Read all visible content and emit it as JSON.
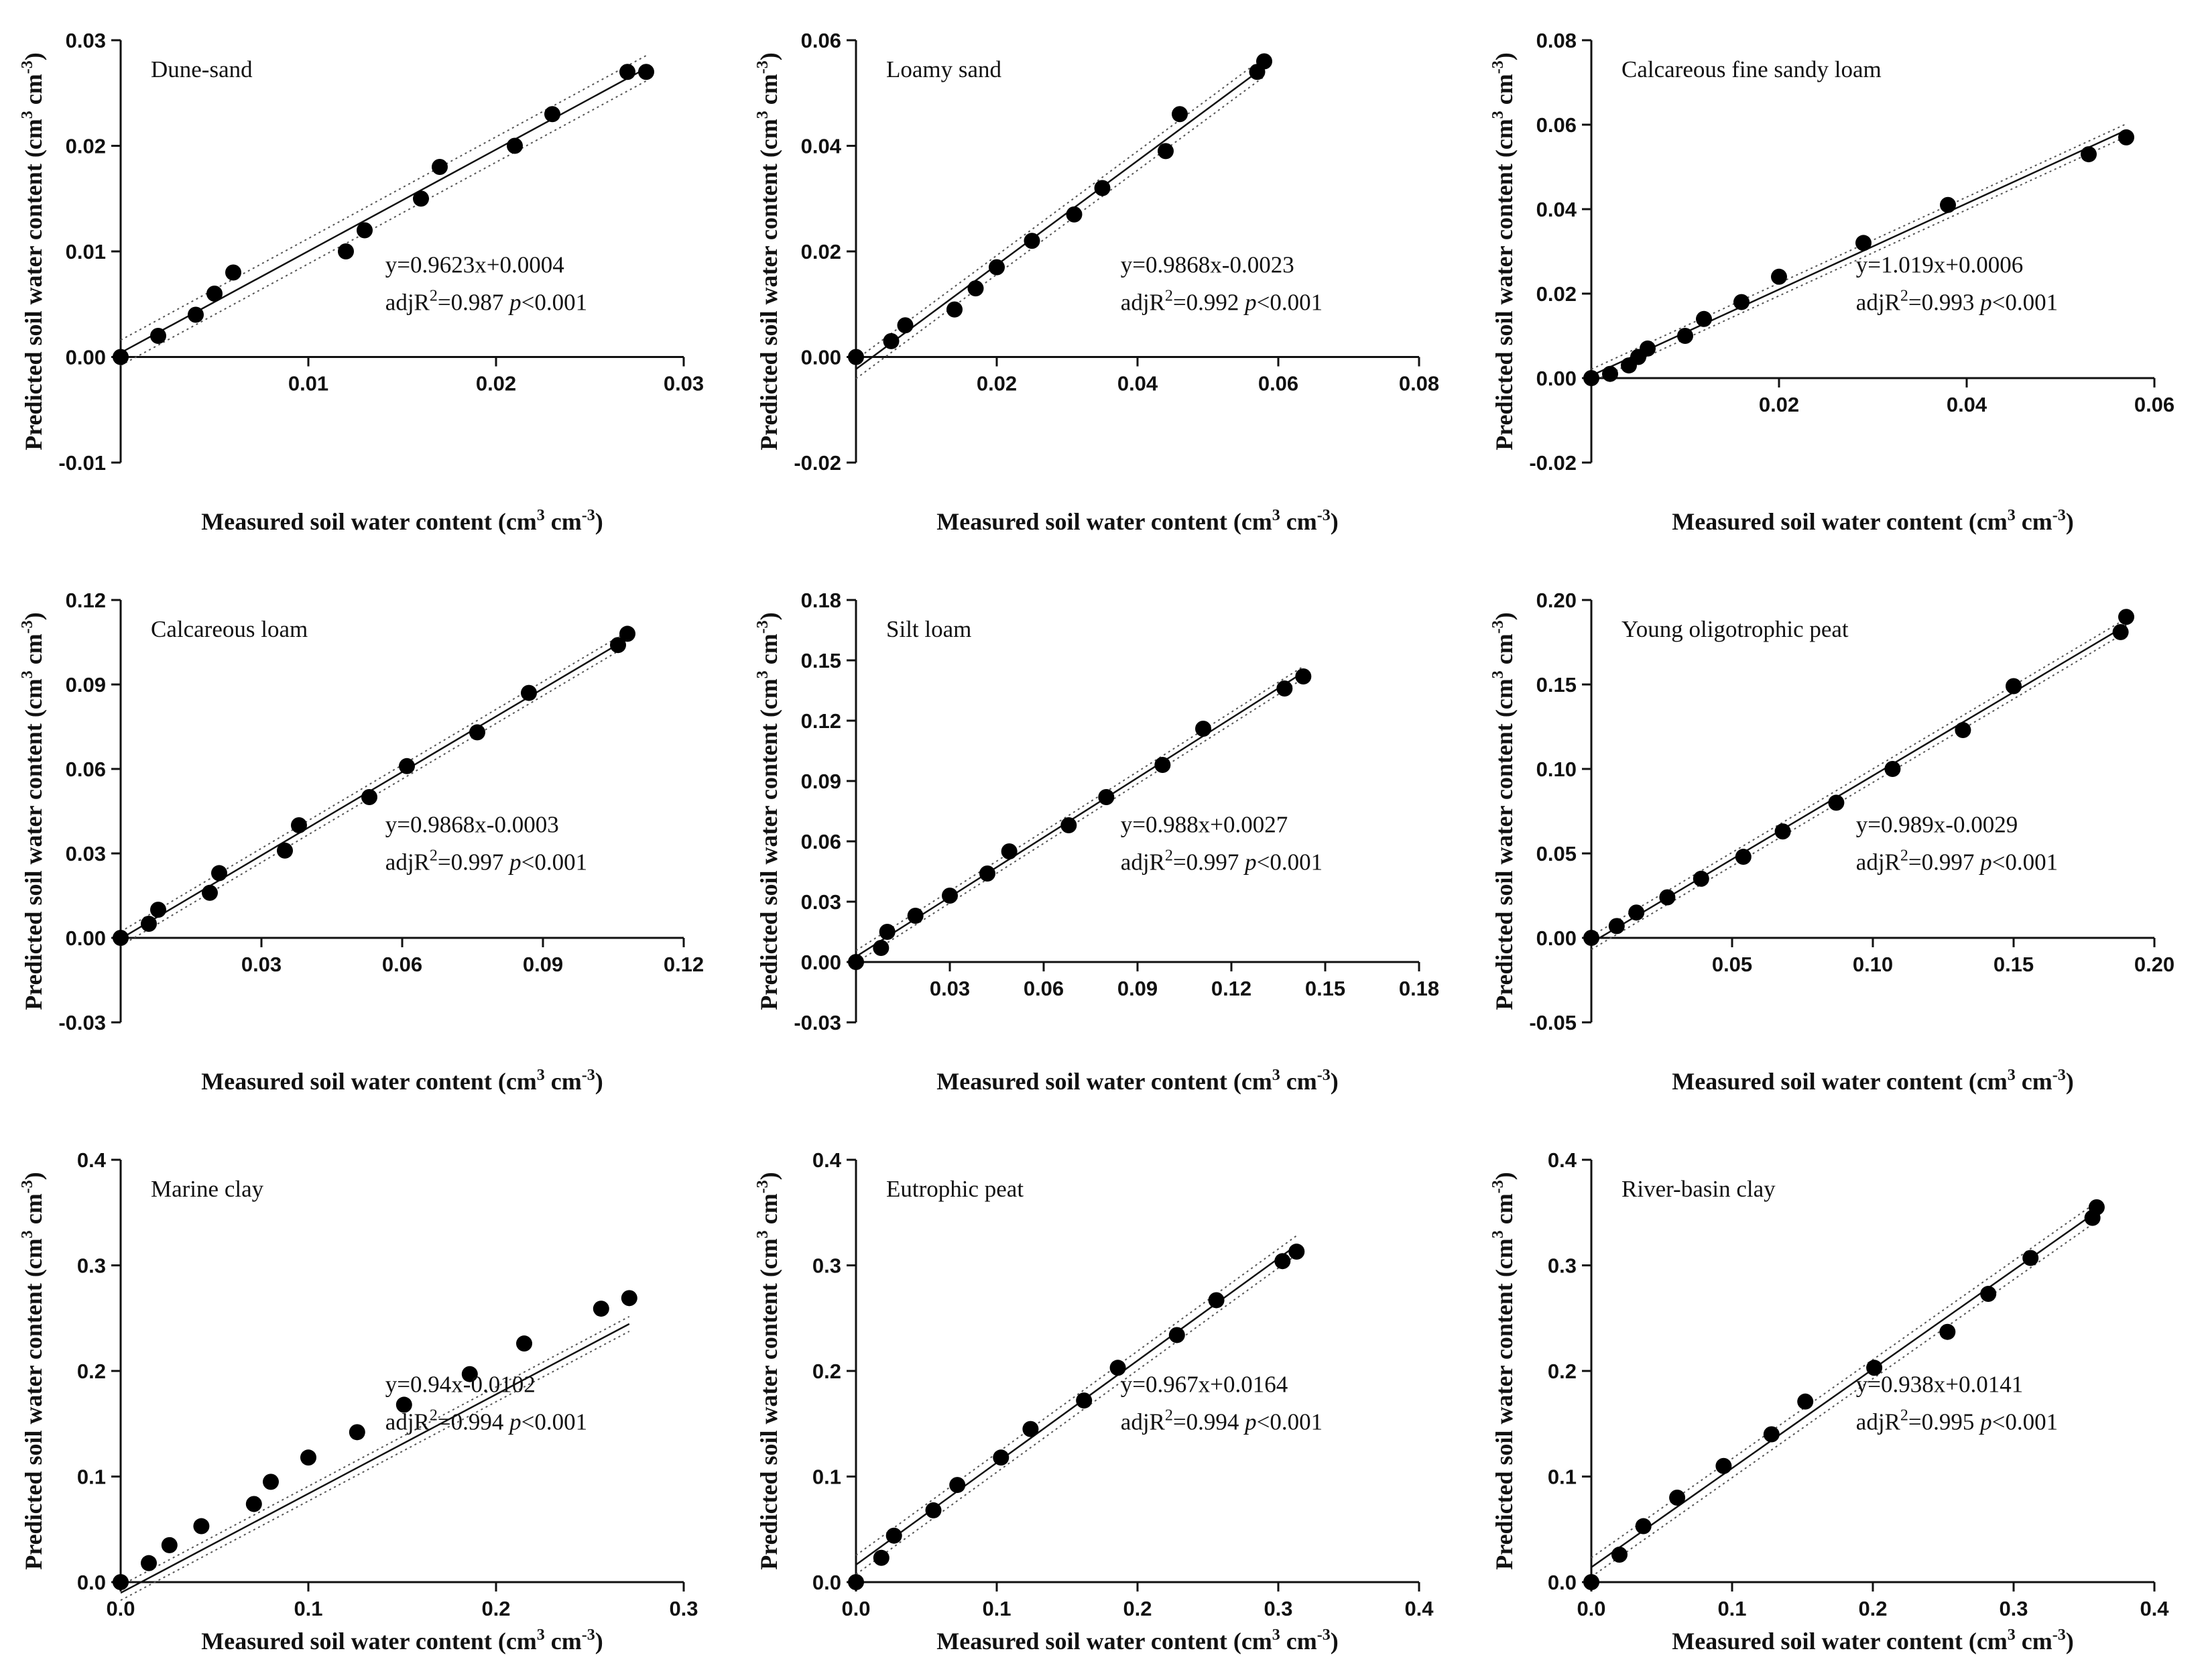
{
  "chart_data": [
    {
      "type": "scatter",
      "title": "Dune-sand",
      "xlabel": "Measured soil water content",
      "ylabel": "Predicted soil water content",
      "unit_label": "(cm3 cm-3)",
      "xlim": [
        0,
        0.03
      ],
      "ylim": [
        -0.01,
        0.03
      ],
      "xticks": [
        0.01,
        0.02,
        0.03
      ],
      "yticks": [
        -0.01,
        0.0,
        0.01,
        0.02,
        0.03
      ],
      "xdec": 2,
      "ydec": 2,
      "equation": "y=0.9623x+0.0004",
      "adj_r2": "0.987",
      "p_text": "p<0.001",
      "slope": 0.9623,
      "intercept": 0.0004,
      "ci": 0.0012,
      "x": [
        0,
        0.002,
        0.004,
        0.005,
        0.006,
        0.012,
        0.013,
        0.016,
        0.017,
        0.021,
        0.023,
        0.027,
        0.028
      ],
      "y": [
        0,
        0.002,
        0.004,
        0.006,
        0.008,
        0.01,
        0.012,
        0.015,
        0.018,
        0.02,
        0.023,
        0.027,
        0.027
      ]
    },
    {
      "type": "scatter",
      "title": "Loamy sand",
      "xlabel": "Measured soil water content",
      "ylabel": "Predicted soil water content",
      "unit_label": "(cm3 cm-3)",
      "xlim": [
        0,
        0.08
      ],
      "ylim": [
        -0.02,
        0.06
      ],
      "xticks": [
        0.02,
        0.04,
        0.06,
        0.08
      ],
      "yticks": [
        -0.02,
        0.0,
        0.02,
        0.04,
        0.06
      ],
      "xdec": 2,
      "ydec": 2,
      "equation": "y=0.9868x-0.0023",
      "adj_r2": "0.992",
      "p_text": "p<0.001",
      "slope": 0.9868,
      "intercept": -0.0023,
      "ci": 0.0018,
      "x": [
        0,
        0.005,
        0.007,
        0.014,
        0.017,
        0.02,
        0.025,
        0.031,
        0.035,
        0.044,
        0.046,
        0.057,
        0.058
      ],
      "y": [
        0,
        0.003,
        0.006,
        0.009,
        0.013,
        0.017,
        0.022,
        0.027,
        0.032,
        0.039,
        0.046,
        0.054,
        0.056
      ]
    },
    {
      "type": "scatter",
      "title": "Calcareous fine sandy loam",
      "xlabel": "Measured soil water content",
      "ylabel": "Predicted soil water content",
      "unit_label": "(cm3 cm-3)",
      "xlim": [
        0,
        0.06
      ],
      "ylim": [
        -0.02,
        0.08
      ],
      "xticks": [
        0.02,
        0.04,
        0.06
      ],
      "yticks": [
        -0.02,
        0.0,
        0.02,
        0.04,
        0.06,
        0.08
      ],
      "xdec": 2,
      "ydec": 2,
      "equation": "y=1.019x+0.0006",
      "adj_r2": "0.993",
      "p_text": "p<0.001",
      "slope": 1.019,
      "intercept": 0.0006,
      "ci": 0.0015,
      "x": [
        0,
        0.002,
        0.004,
        0.005,
        0.006,
        0.01,
        0.012,
        0.016,
        0.02,
        0.029,
        0.038,
        0.053,
        0.057
      ],
      "y": [
        0,
        0.001,
        0.003,
        0.005,
        0.007,
        0.01,
        0.014,
        0.018,
        0.024,
        0.032,
        0.041,
        0.053,
        0.057
      ]
    },
    {
      "type": "scatter",
      "title": "Calcareous loam",
      "xlabel": "Measured soil water content",
      "ylabel": "Predicted soil water content",
      "unit_label": "(cm3 cm-3)",
      "xlim": [
        0,
        0.12
      ],
      "ylim": [
        -0.03,
        0.12
      ],
      "xticks": [
        0.03,
        0.06,
        0.09,
        0.12
      ],
      "yticks": [
        -0.03,
        0.0,
        0.03,
        0.06,
        0.09,
        0.12
      ],
      "xdec": 2,
      "ydec": 2,
      "equation": "y=0.9868x-0.0003",
      "adj_r2": "0.997",
      "p_text": "p<0.001",
      "slope": 0.9868,
      "intercept": -0.0003,
      "ci": 0.0025,
      "x": [
        0,
        0.006,
        0.008,
        0.019,
        0.021,
        0.035,
        0.038,
        0.053,
        0.061,
        0.076,
        0.087,
        0.106,
        0.108
      ],
      "y": [
        0,
        0.005,
        0.01,
        0.016,
        0.023,
        0.031,
        0.04,
        0.05,
        0.061,
        0.073,
        0.087,
        0.104,
        0.108
      ]
    },
    {
      "type": "scatter",
      "title": "Silt loam",
      "xlabel": "Measured soil water content",
      "ylabel": "Predicted soil water content",
      "unit_label": "(cm3 cm-3)",
      "xlim": [
        0,
        0.18
      ],
      "ylim": [
        -0.03,
        0.18
      ],
      "xticks": [
        0.03,
        0.06,
        0.09,
        0.12,
        0.15,
        0.18
      ],
      "yticks": [
        -0.03,
        0.0,
        0.03,
        0.06,
        0.09,
        0.12,
        0.15,
        0.18
      ],
      "xdec": 2,
      "ydec": 2,
      "equation": "y=0.988x+0.0027",
      "adj_r2": "0.997",
      "p_text": "p<0.001",
      "slope": 0.988,
      "intercept": 0.0027,
      "ci": 0.003,
      "x": [
        0,
        0.008,
        0.01,
        0.019,
        0.03,
        0.042,
        0.049,
        0.068,
        0.08,
        0.098,
        0.111,
        0.137,
        0.143
      ],
      "y": [
        0,
        0.007,
        0.015,
        0.023,
        0.033,
        0.044,
        0.055,
        0.068,
        0.082,
        0.098,
        0.116,
        0.136,
        0.142
      ]
    },
    {
      "type": "scatter",
      "title": "Young oligotrophic peat",
      "xlabel": "Measured soil water content",
      "ylabel": "Predicted soil water content",
      "unit_label": "(cm3 cm-3)",
      "xlim": [
        0,
        0.2
      ],
      "ylim": [
        -0.05,
        0.2
      ],
      "xticks": [
        0.05,
        0.1,
        0.15,
        0.2
      ],
      "yticks": [
        -0.05,
        0.0,
        0.05,
        0.1,
        0.15,
        0.2
      ],
      "xdec": 2,
      "ydec": 2,
      "equation": "y=0.989x-0.0029",
      "adj_r2": "0.997",
      "p_text": "p<0.001",
      "slope": 0.989,
      "intercept": -0.0029,
      "ci": 0.004,
      "x": [
        0,
        0.009,
        0.016,
        0.027,
        0.039,
        0.054,
        0.068,
        0.087,
        0.107,
        0.132,
        0.15,
        0.188,
        0.19
      ],
      "y": [
        0,
        0.007,
        0.015,
        0.024,
        0.035,
        0.048,
        0.063,
        0.08,
        0.1,
        0.123,
        0.149,
        0.181,
        0.19
      ]
    },
    {
      "type": "scatter",
      "title": "Marine clay",
      "xlabel": "Measured soil water content",
      "ylabel": "Predicted soil water content",
      "unit_label": "(cm3 cm-3)",
      "xlim": [
        0,
        0.3
      ],
      "ylim": [
        0,
        0.4
      ],
      "xticks": [
        0.0,
        0.1,
        0.2,
        0.3
      ],
      "yticks": [
        0.0,
        0.1,
        0.2,
        0.3,
        0.4
      ],
      "xdec": 1,
      "ydec": 1,
      "equation": "y=0.94x-0.0102",
      "adj_r2": "0.994",
      "p_text": "p<0.001",
      "slope": 0.94,
      "intercept": -0.0102,
      "ci": 0.007,
      "x": [
        0,
        0.015,
        0.026,
        0.043,
        0.071,
        0.08,
        0.1,
        0.126,
        0.151,
        0.186,
        0.215,
        0.256,
        0.271
      ],
      "y": [
        0,
        0.018,
        0.035,
        0.053,
        0.074,
        0.095,
        0.118,
        0.142,
        0.168,
        0.197,
        0.226,
        0.259,
        0.269
      ]
    },
    {
      "type": "scatter",
      "title": "Eutrophic peat",
      "xlabel": "Measured soil water content",
      "ylabel": "Predicted soil water content",
      "unit_label": "(cm3 cm-3)",
      "xlim": [
        0,
        0.4
      ],
      "ylim": [
        0,
        0.4
      ],
      "xticks": [
        0.0,
        0.1,
        0.2,
        0.3,
        0.4
      ],
      "yticks": [
        0.0,
        0.1,
        0.2,
        0.3,
        0.4
      ],
      "xdec": 1,
      "ydec": 1,
      "equation": "y=0.967x+0.0164",
      "adj_r2": "0.994",
      "p_text": "p<0.001",
      "slope": 0.967,
      "intercept": 0.0164,
      "ci": 0.009,
      "x": [
        0,
        0.018,
        0.027,
        0.055,
        0.072,
        0.103,
        0.124,
        0.162,
        0.186,
        0.228,
        0.256,
        0.303,
        0.313
      ],
      "y": [
        0,
        0.023,
        0.044,
        0.068,
        0.092,
        0.118,
        0.145,
        0.172,
        0.203,
        0.234,
        0.267,
        0.304,
        0.313
      ]
    },
    {
      "type": "scatter",
      "title": "River-basin clay",
      "xlabel": "Measured soil water content",
      "ylabel": "Predicted soil water content",
      "unit_label": "(cm3 cm-3)",
      "xlim": [
        0,
        0.4
      ],
      "ylim": [
        0,
        0.4
      ],
      "xticks": [
        0.0,
        0.1,
        0.2,
        0.3,
        0.4
      ],
      "yticks": [
        0.0,
        0.1,
        0.2,
        0.3,
        0.4
      ],
      "xdec": 1,
      "ydec": 1,
      "equation": "y=0.938x+0.0141",
      "adj_r2": "0.995",
      "p_text": "p<0.001",
      "slope": 0.938,
      "intercept": 0.0141,
      "ci": 0.009,
      "x": [
        0,
        0.02,
        0.037,
        0.061,
        0.094,
        0.128,
        0.152,
        0.201,
        0.253,
        0.282,
        0.312,
        0.356,
        0.359
      ],
      "y": [
        0,
        0.026,
        0.053,
        0.08,
        0.11,
        0.14,
        0.171,
        0.203,
        0.237,
        0.273,
        0.307,
        0.345,
        0.355
      ]
    }
  ]
}
